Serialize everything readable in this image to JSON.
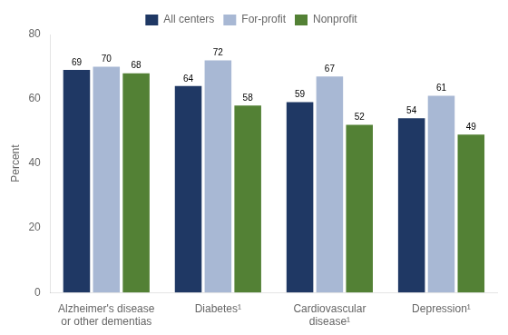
{
  "chart_data": {
    "type": "bar",
    "categories": [
      "Alzheimer's disease\nor other dementias",
      "Diabetes¹",
      "Cardiovascular\ndisease¹",
      "Depression¹"
    ],
    "series": [
      {
        "name": "All centers",
        "color": "#1f3864",
        "values": [
          69,
          64,
          59,
          54
        ]
      },
      {
        "name": "For-profit",
        "color": "#a8b8d4",
        "values": [
          70,
          72,
          67,
          61
        ]
      },
      {
        "name": "Nonprofit",
        "color": "#538135",
        "values": [
          68,
          58,
          52,
          49
        ]
      }
    ],
    "ylabel": "Percent",
    "ylim": [
      0,
      80
    ],
    "yticks": [
      0,
      20,
      40,
      60,
      80
    ],
    "grid": false,
    "legend": "top",
    "data_labels": true
  }
}
